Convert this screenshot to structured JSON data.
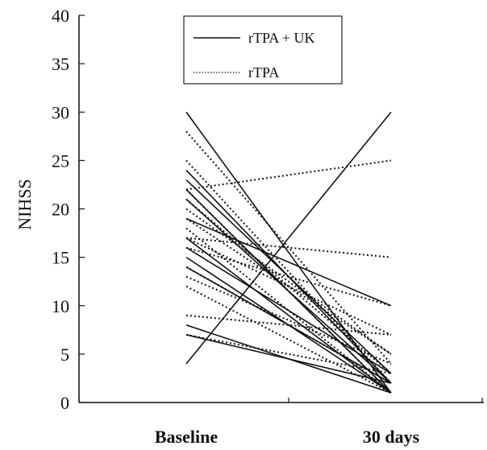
{
  "chart_data": {
    "type": "line",
    "categories": [
      "Baseline",
      "30 days"
    ],
    "ylabel": "NIHSS",
    "xlabel": "",
    "ylim": [
      0,
      40
    ],
    "yticks": [
      0,
      5,
      10,
      15,
      20,
      25,
      30,
      35,
      40
    ],
    "legend_position": "top-center",
    "grid": false,
    "series": [
      {
        "name": "rTPA + UK",
        "style": "solid",
        "color": "#111111",
        "lines": [
          [
            30,
            1
          ],
          [
            4,
            30
          ],
          [
            24,
            2
          ],
          [
            23,
            3
          ],
          [
            22,
            1
          ],
          [
            21,
            2
          ],
          [
            19,
            10
          ],
          [
            17,
            1
          ],
          [
            16,
            3
          ],
          [
            15,
            1
          ],
          [
            14,
            2
          ],
          [
            8,
            1
          ],
          [
            7,
            2
          ]
        ]
      },
      {
        "name": "rTPA",
        "style": "dotted",
        "color": "#111111",
        "lines": [
          [
            28,
            4
          ],
          [
            25,
            2
          ],
          [
            22,
            25
          ],
          [
            21,
            3
          ],
          [
            20,
            5
          ],
          [
            18,
            1
          ],
          [
            17,
            15
          ],
          [
            16,
            10
          ],
          [
            17,
            7
          ],
          [
            14,
            2
          ],
          [
            13,
            4
          ],
          [
            12,
            1
          ],
          [
            9,
            7
          ],
          [
            7,
            3
          ],
          [
            22,
            1
          ],
          [
            19,
            5
          ]
        ]
      }
    ]
  }
}
